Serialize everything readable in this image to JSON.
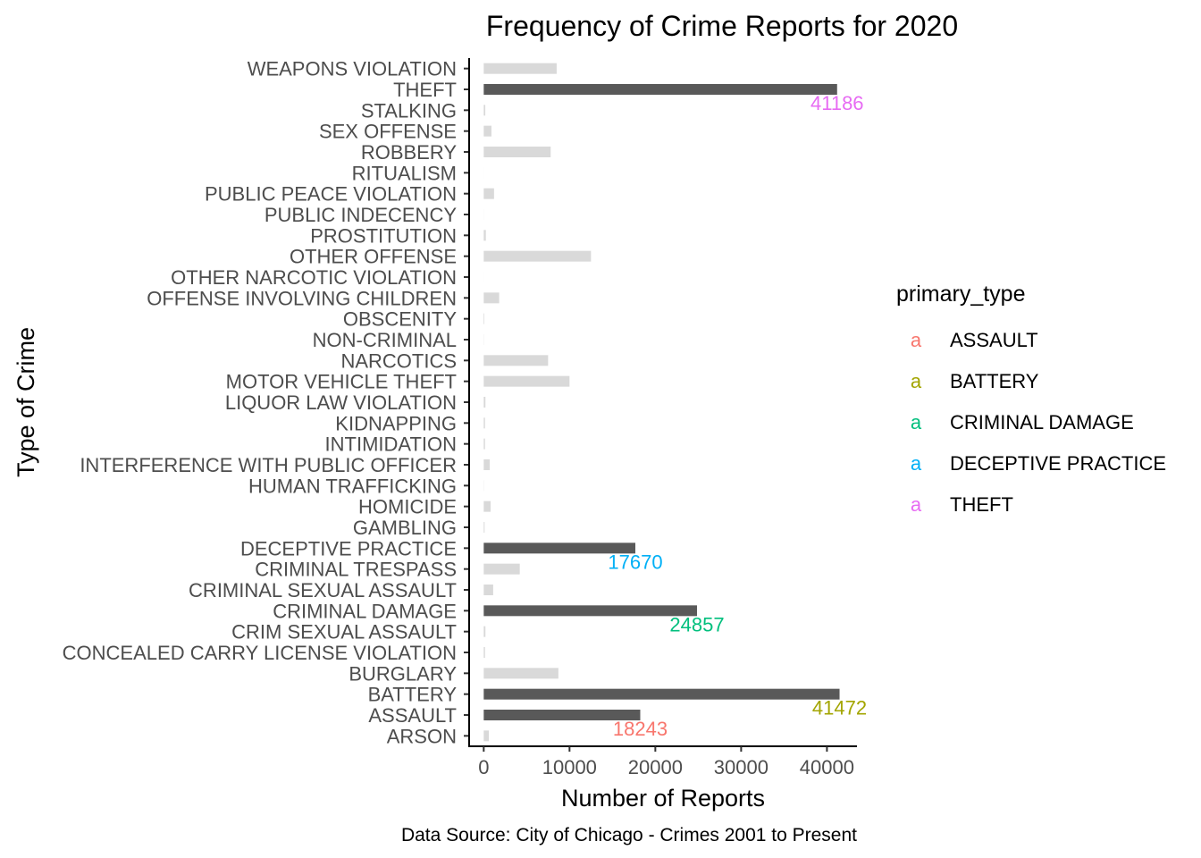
{
  "chart_data": {
    "type": "bar",
    "orientation": "horizontal",
    "title": "Frequency of Crime Reports for 2020",
    "xlabel": "Number of Reports",
    "ylabel": "Type of Crime",
    "caption": "Data Source: City of Chicago - Crimes 2001 to Present",
    "xlim": [
      -1700,
      43500
    ],
    "xticks": [
      0,
      10000,
      20000,
      30000,
      40000
    ],
    "grid": false,
    "legend_position": "right",
    "legend_title": "primary_type",
    "legend_entries": [
      {
        "key_glyph": "a",
        "name": "ASSAULT",
        "color": "#F8766D"
      },
      {
        "key_glyph": "a",
        "name": "BATTERY",
        "color": "#A3A500"
      },
      {
        "key_glyph": "a",
        "name": "CRIMINAL DAMAGE",
        "color": "#00BF7D"
      },
      {
        "key_glyph": "a",
        "name": "DECEPTIVE PRACTICE",
        "color": "#00B0F6"
      },
      {
        "key_glyph": "a",
        "name": "THEFT",
        "color": "#E76BF3"
      }
    ],
    "colors": {
      "highlight_bar": "#595959",
      "other_bar": "#d9d9d9",
      "axis": "#000000",
      "tick_label": "#4d4d4d"
    },
    "categories": [
      "ARSON",
      "ASSAULT",
      "BATTERY",
      "BURGLARY",
      "CONCEALED CARRY LICENSE VIOLATION",
      "CRIM SEXUAL ASSAULT",
      "CRIMINAL DAMAGE",
      "CRIMINAL SEXUAL ASSAULT",
      "CRIMINAL TRESPASS",
      "DECEPTIVE PRACTICE",
      "GAMBLING",
      "HOMICIDE",
      "HUMAN TRAFFICKING",
      "INTERFERENCE WITH PUBLIC OFFICER",
      "INTIMIDATION",
      "KIDNAPPING",
      "LIQUOR LAW VIOLATION",
      "MOTOR VEHICLE THEFT",
      "NARCOTICS",
      "NON-CRIMINAL",
      "OBSCENITY",
      "OFFENSE INVOLVING CHILDREN",
      "OTHER NARCOTIC VIOLATION",
      "OTHER OFFENSE",
      "PROSTITUTION",
      "PUBLIC INDECENCY",
      "PUBLIC PEACE VIOLATION",
      "RITUALISM",
      "ROBBERY",
      "SEX OFFENSE",
      "STALKING",
      "THEFT",
      "WEAPONS VIOLATION"
    ],
    "values": [
      600,
      18243,
      41472,
      8700,
      150,
      200,
      24857,
      1100,
      4200,
      17670,
      100,
      800,
      20,
      700,
      150,
      150,
      200,
      10000,
      7500,
      20,
      70,
      1800,
      5,
      12500,
      250,
      10,
      1200,
      5,
      7800,
      900,
      180,
      41186,
      8500
    ],
    "highlighted": [
      "ASSAULT",
      "BATTERY",
      "CRIMINAL DAMAGE",
      "DECEPTIVE PRACTICE",
      "THEFT"
    ],
    "data_labels": [
      {
        "category": "ASSAULT",
        "text": "18243",
        "color": "#F8766D"
      },
      {
        "category": "BATTERY",
        "text": "41472",
        "color": "#A3A500"
      },
      {
        "category": "CRIMINAL DAMAGE",
        "text": "24857",
        "color": "#00BF7D"
      },
      {
        "category": "DECEPTIVE PRACTICE",
        "text": "17670",
        "color": "#00B0F6"
      },
      {
        "category": "THEFT",
        "text": "41186",
        "color": "#E76BF3"
      }
    ]
  }
}
